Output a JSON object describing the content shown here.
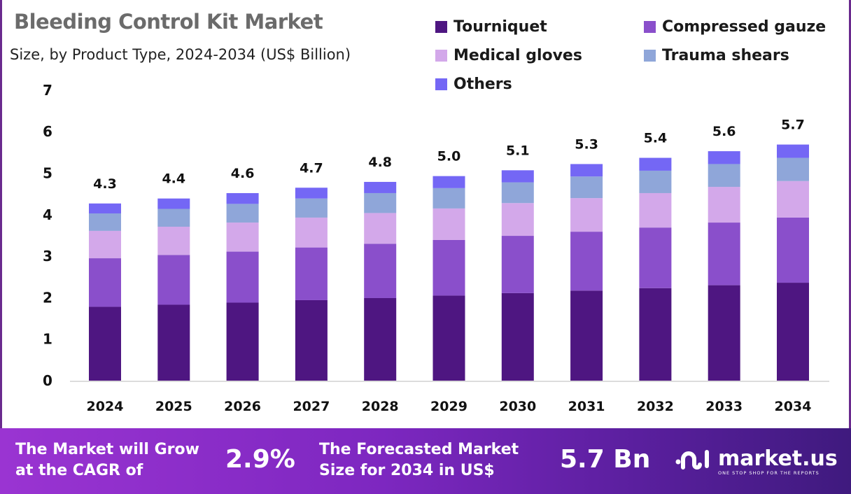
{
  "chart_data": {
    "type": "bar",
    "stacked": true,
    "title": "Bleeding Control Kit Market",
    "subtitle": "Size, by Product Type, 2024-2034 (US$ Billion)",
    "categories": [
      "2024",
      "2025",
      "2026",
      "2027",
      "2028",
      "2029",
      "2030",
      "2031",
      "2032",
      "2033",
      "2034"
    ],
    "series": [
      {
        "name": "Tourniquet",
        "color": "#4e1681",
        "values": [
          1.78,
          1.83,
          1.88,
          1.94,
          1.99,
          2.05,
          2.11,
          2.17,
          2.23,
          2.3,
          2.36
        ]
      },
      {
        "name": "Compressed gauze",
        "color": "#8a4fcb",
        "values": [
          1.17,
          1.2,
          1.23,
          1.27,
          1.31,
          1.34,
          1.38,
          1.42,
          1.46,
          1.51,
          1.57
        ]
      },
      {
        "name": "Medical gloves",
        "color": "#d3a8ea",
        "values": [
          0.66,
          0.68,
          0.7,
          0.72,
          0.74,
          0.76,
          0.79,
          0.81,
          0.83,
          0.86,
          0.88
        ]
      },
      {
        "name": "Trauma shears",
        "color": "#8fa6d9",
        "values": [
          0.42,
          0.43,
          0.45,
          0.46,
          0.48,
          0.49,
          0.5,
          0.52,
          0.54,
          0.55,
          0.56
        ]
      },
      {
        "name": "Others",
        "color": "#7467f5",
        "values": [
          0.24,
          0.25,
          0.26,
          0.26,
          0.27,
          0.29,
          0.29,
          0.3,
          0.31,
          0.31,
          0.32
        ]
      }
    ],
    "totals_labels": [
      "4.3",
      "4.4",
      "4.6",
      "4.7",
      "4.8",
      "5.0",
      "5.1",
      "5.3",
      "5.4",
      "5.6",
      "5.7"
    ],
    "yticks": [
      "0",
      "1",
      "2",
      "3",
      "4",
      "5",
      "6",
      "7"
    ],
    "ylim": [
      0,
      7
    ],
    "xlabel": "",
    "ylabel": "",
    "grid": false,
    "legend_position": "top-right"
  },
  "footer": {
    "cagr_text_line1": "The Market will Grow",
    "cagr_text_line2": "at the CAGR of",
    "cagr_value": "2.9%",
    "forecast_text_line1": "The Forecasted Market",
    "forecast_text_line2": "Size for 2034 in US$",
    "forecast_value": "5.7 Bn",
    "logo_name": "market.us",
    "logo_tagline": "ONE STOP SHOP FOR THE REPORTS"
  }
}
